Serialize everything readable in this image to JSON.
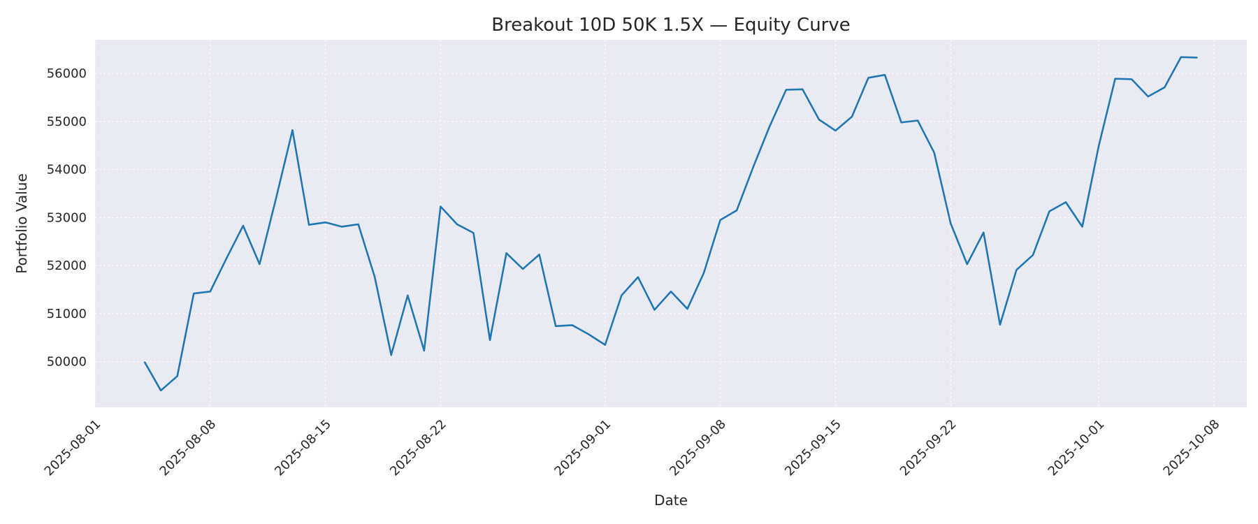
{
  "chart_data": {
    "type": "line",
    "title": "Breakout 10D 50K 1.5X — Equity Curve",
    "xlabel": "Date",
    "ylabel": "Portfolio Value",
    "xlim": [
      "2025-08-01",
      "2025-10-10"
    ],
    "ylim": [
      49050,
      56700
    ],
    "x_ticks": [
      "2025-08-01",
      "2025-08-08",
      "2025-08-15",
      "2025-08-22",
      "2025-09-01",
      "2025-09-08",
      "2025-09-15",
      "2025-09-22",
      "2025-10-01",
      "2025-10-08"
    ],
    "y_ticks": [
      50000,
      51000,
      52000,
      53000,
      54000,
      55000,
      56000
    ],
    "grid": true,
    "colors": {
      "background": "#eaeaf2",
      "grid": "#ffffff",
      "line": "#1f77b4"
    },
    "series": [
      {
        "x": [
          "2025-08-04",
          "2025-08-05",
          "2025-08-06",
          "2025-08-07",
          "2025-08-08",
          "2025-08-09",
          "2025-08-10",
          "2025-08-11",
          "2025-08-12",
          "2025-08-13",
          "2025-08-14",
          "2025-08-15",
          "2025-08-16",
          "2025-08-17",
          "2025-08-18",
          "2025-08-19",
          "2025-08-20",
          "2025-08-21",
          "2025-08-22",
          "2025-08-23",
          "2025-08-24",
          "2025-08-25",
          "2025-08-26",
          "2025-08-27",
          "2025-08-28",
          "2025-08-29",
          "2025-08-30",
          "2025-08-31",
          "2025-09-01",
          "2025-09-02",
          "2025-09-03",
          "2025-09-04",
          "2025-09-05",
          "2025-09-06",
          "2025-09-07",
          "2025-09-08",
          "2025-09-09",
          "2025-09-10",
          "2025-09-11",
          "2025-09-12",
          "2025-09-13",
          "2025-09-14",
          "2025-09-15",
          "2025-09-16",
          "2025-09-17",
          "2025-09-18",
          "2025-09-19",
          "2025-09-20",
          "2025-09-21",
          "2025-09-22",
          "2025-09-23",
          "2025-09-24",
          "2025-09-25",
          "2025-09-26",
          "2025-09-27",
          "2025-09-28",
          "2025-09-29",
          "2025-09-30",
          "2025-10-01",
          "2025-10-02",
          "2025-10-03",
          "2025-10-04",
          "2025-10-05",
          "2025-10-06",
          "2025-10-07"
        ],
        "values": [
          50000,
          49400,
          49700,
          51420,
          51460,
          52160,
          52830,
          52030,
          53400,
          54820,
          52850,
          52900,
          52810,
          52860,
          51760,
          50140,
          51380,
          50230,
          53230,
          52860,
          52680,
          50450,
          52260,
          51930,
          52230,
          50740,
          50760,
          50570,
          50350,
          51380,
          51760,
          51080,
          51460,
          51100,
          51850,
          52950,
          53150,
          54050,
          54900,
          55660,
          55670,
          55040,
          54810,
          55100,
          55910,
          55970,
          54980,
          55020,
          54350,
          52880,
          52030,
          52690,
          50770,
          51910,
          52220,
          53130,
          53320,
          52810,
          54490,
          55890,
          55880,
          55520,
          55710,
          56340,
          56330
        ]
      }
    ]
  }
}
